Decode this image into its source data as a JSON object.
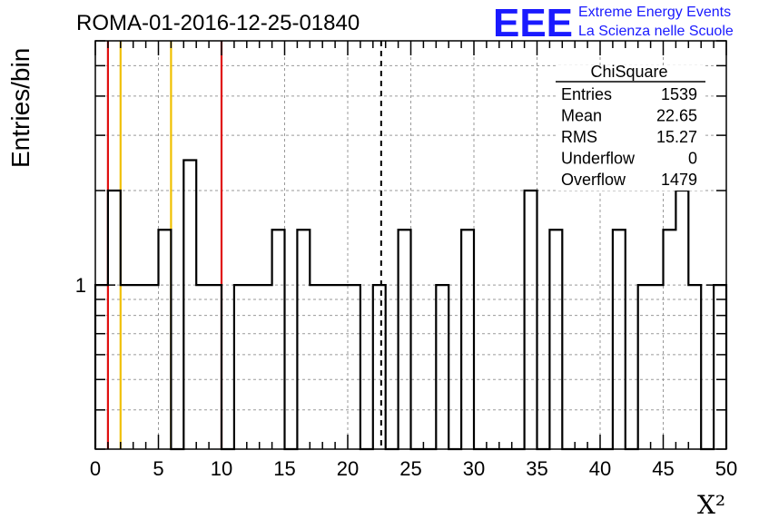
{
  "chart_data": {
    "type": "histogram",
    "title": "ROMA-01-2016-12-25-01840",
    "xlabel": "X²",
    "ylabel": "Entries/bin",
    "xlim": [
      0,
      50
    ],
    "ylim": [
      0.3,
      6
    ],
    "yscale": "log",
    "bin_width": 1.0,
    "bins": [
      {
        "x": 0,
        "y": 1
      },
      {
        "x": 1,
        "y": 2
      },
      {
        "x": 2,
        "y": 1
      },
      {
        "x": 3,
        "y": 1
      },
      {
        "x": 4,
        "y": 1
      },
      {
        "x": 5,
        "y": 1.5
      },
      {
        "x": 6,
        "y": 0
      },
      {
        "x": 7,
        "y": 2.5
      },
      {
        "x": 8,
        "y": 1
      },
      {
        "x": 9,
        "y": 1
      },
      {
        "x": 10,
        "y": 0
      },
      {
        "x": 11,
        "y": 1
      },
      {
        "x": 12,
        "y": 1
      },
      {
        "x": 13,
        "y": 1
      },
      {
        "x": 14,
        "y": 1.5
      },
      {
        "x": 15,
        "y": 0
      },
      {
        "x": 16,
        "y": 1.5
      },
      {
        "x": 17,
        "y": 1
      },
      {
        "x": 18,
        "y": 1
      },
      {
        "x": 19,
        "y": 1
      },
      {
        "x": 20,
        "y": 1
      },
      {
        "x": 21,
        "y": 0
      },
      {
        "x": 22,
        "y": 1
      },
      {
        "x": 23,
        "y": 0
      },
      {
        "x": 24,
        "y": 1.5
      },
      {
        "x": 25,
        "y": 0
      },
      {
        "x": 26,
        "y": 0
      },
      {
        "x": 27,
        "y": 1
      },
      {
        "x": 28,
        "y": 0
      },
      {
        "x": 29,
        "y": 1.5
      },
      {
        "x": 30,
        "y": 0
      },
      {
        "x": 31,
        "y": 0
      },
      {
        "x": 32,
        "y": 0
      },
      {
        "x": 33,
        "y": 0
      },
      {
        "x": 34,
        "y": 2
      },
      {
        "x": 35,
        "y": 0
      },
      {
        "x": 36,
        "y": 1.5
      },
      {
        "x": 37,
        "y": 0
      },
      {
        "x": 38,
        "y": 0
      },
      {
        "x": 39,
        "y": 0
      },
      {
        "x": 40,
        "y": 0
      },
      {
        "x": 41,
        "y": 1.5
      },
      {
        "x": 42,
        "y": 0
      },
      {
        "x": 43,
        "y": 1
      },
      {
        "x": 44,
        "y": 1
      },
      {
        "x": 45,
        "y": 1.5
      },
      {
        "x": 46,
        "y": 2
      },
      {
        "x": 47,
        "y": 1
      },
      {
        "x": 48,
        "y": 0
      },
      {
        "x": 49,
        "y": 1
      }
    ],
    "xticks": [
      0,
      5,
      10,
      15,
      20,
      25,
      30,
      35,
      40,
      45,
      50
    ],
    "yticks_labeled": [
      1
    ],
    "vertical_lines": [
      {
        "x": 1,
        "color": "#e01010",
        "style": "solid"
      },
      {
        "x": 2,
        "color": "#f0c000",
        "style": "solid"
      },
      {
        "x": 6,
        "color": "#f0c000",
        "style": "solid"
      },
      {
        "x": 10,
        "color": "#e01010",
        "style": "solid"
      },
      {
        "x": 22.65,
        "color": "#000000",
        "style": "dashed"
      }
    ],
    "grid": true,
    "stats_box": {
      "name": "ChiSquare",
      "rows": [
        {
          "label": "Entries",
          "value": "1539"
        },
        {
          "label": "Mean",
          "value": "22.65"
        },
        {
          "label": "RMS",
          "value": "15.27"
        },
        {
          "label": "Underflow",
          "value": "0"
        },
        {
          "label": "Overflow",
          "value": "1479"
        }
      ]
    }
  },
  "logo": {
    "mark": "EEE",
    "line1": "Extreme Energy Events",
    "line2": "La Scienza nelle Scuole"
  },
  "colors": {
    "red_line": "#e01010",
    "yellow_line": "#f0c000",
    "logo_blue": "#1a1aff",
    "grid": "#9a9a9a"
  }
}
